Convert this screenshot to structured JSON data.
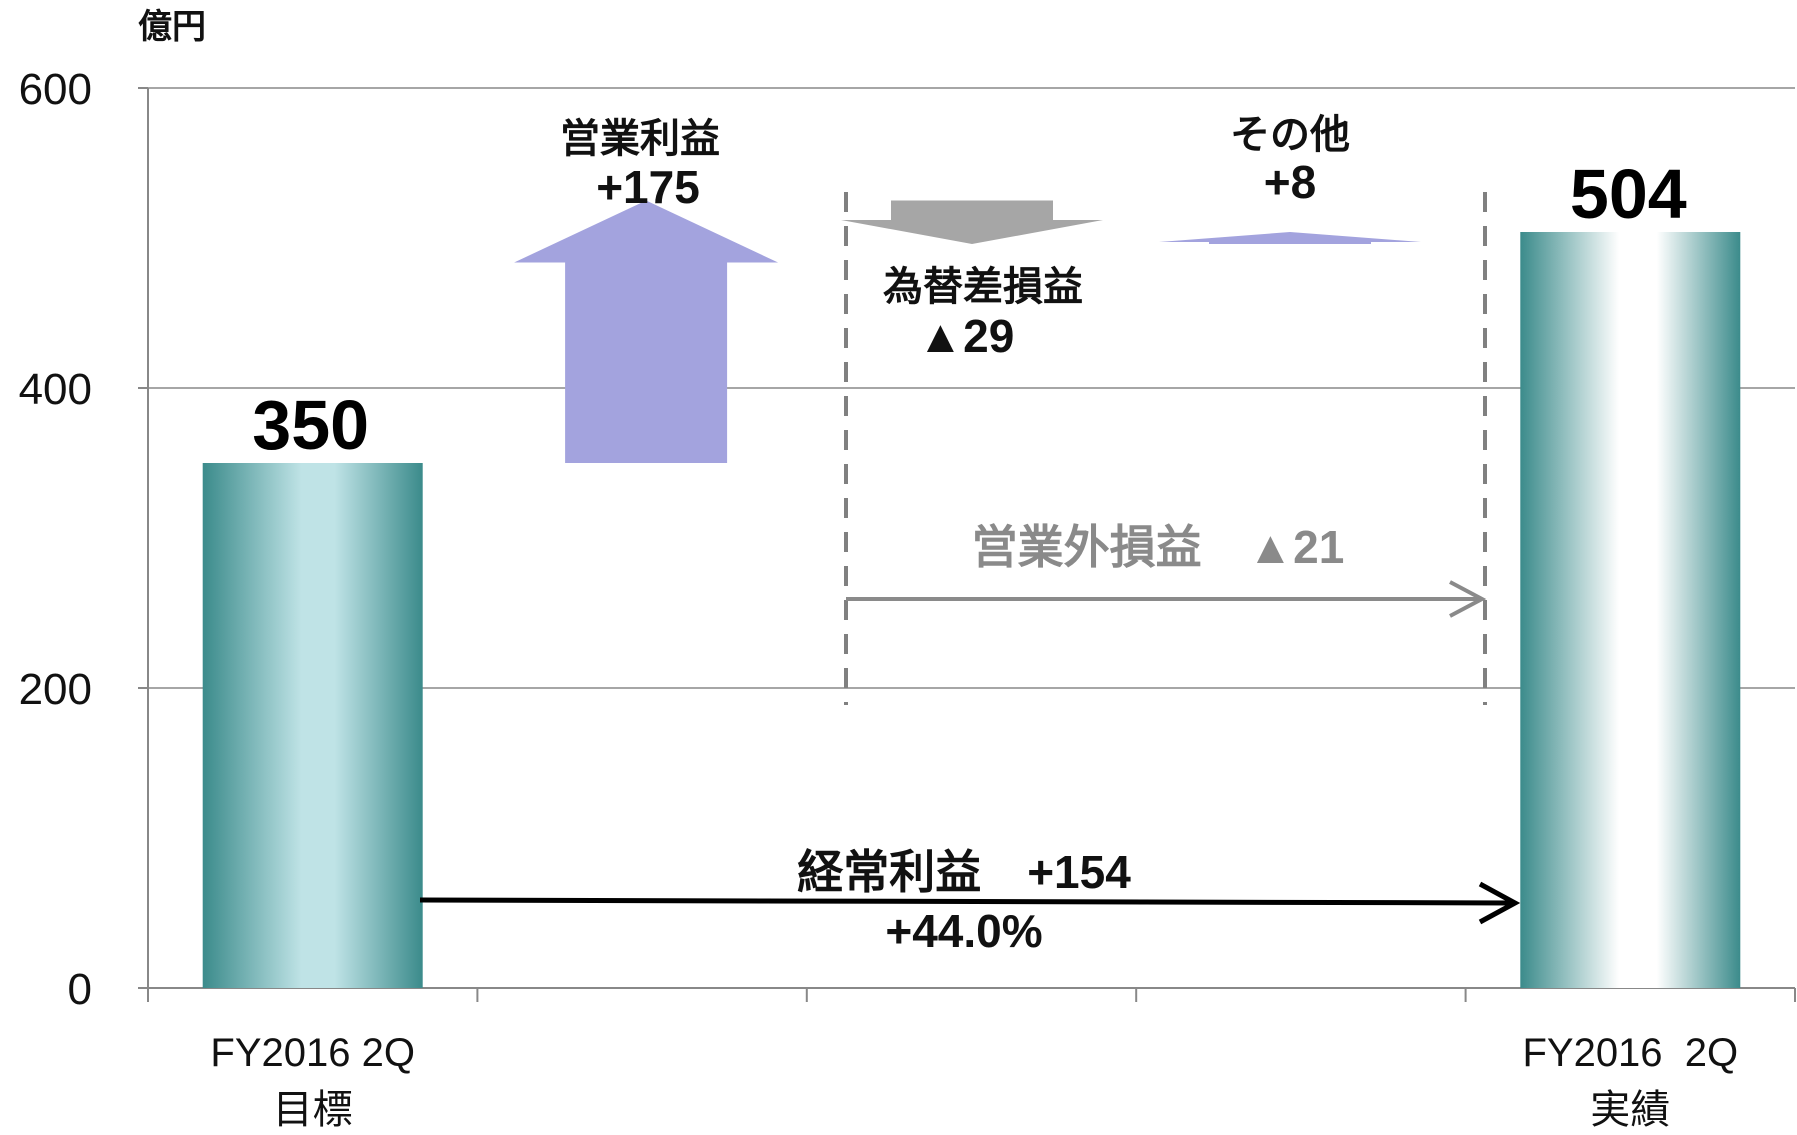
{
  "chart_data": {
    "type": "waterfall",
    "unit_label": "億円",
    "ylim": [
      0,
      600
    ],
    "yticks": [
      0,
      200,
      400,
      600
    ],
    "grid": true,
    "categories": [
      [
        "FY2016 2Q",
        "目標"
      ],
      [],
      [],
      [],
      [
        "FY2016  2Q",
        "実績"
      ]
    ],
    "totals": [
      {
        "category_index": 0,
        "value": 350,
        "label": "350"
      },
      {
        "category_index": 4,
        "value": 504,
        "label": "504"
      }
    ],
    "changes": [
      {
        "name": "営業利益",
        "delta_label": "+175",
        "value": 175,
        "from": 350,
        "to": 525,
        "color": "#a3a3de"
      },
      {
        "name": "為替差損益",
        "delta_label": "▲29",
        "value": -29,
        "from": 525,
        "to": 496,
        "color": "#a6a6a6"
      },
      {
        "name": "その他",
        "delta_label": "+8",
        "value": 8,
        "from": 496,
        "to": 504,
        "color": "#a3a3de"
      }
    ],
    "bracket": {
      "label": "営業外損益　▲21",
      "value": -21
    },
    "overall": {
      "label": "経常利益　+154",
      "value": 154,
      "percent_label": "+44.0%"
    },
    "colors": {
      "bar_dark": "#3a8a8a",
      "bar_light": "#bde3e6",
      "grid": "#a6a6a6",
      "gray": "#8a8a8a"
    }
  }
}
